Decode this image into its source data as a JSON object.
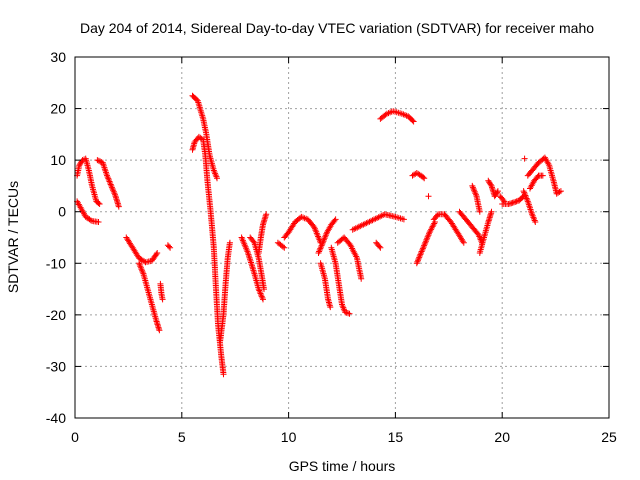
{
  "chart_data": {
    "type": "scatter",
    "title": "Day 204 of 2014, Sidereal Day-to-day VTEC variation (SDTVAR) for receiver maho",
    "xlabel": "GPS time / hours",
    "ylabel": "SDTVAR / TECUs",
    "xlim": [
      0,
      25
    ],
    "ylim": [
      -40,
      30
    ],
    "xticks": [
      0,
      5,
      10,
      15,
      20,
      25
    ],
    "yticks": [
      -40,
      -30,
      -20,
      -10,
      0,
      10,
      20,
      30
    ],
    "xtick_labels": [
      "0",
      "5",
      "10",
      "15",
      "20",
      "25"
    ],
    "ytick_labels": [
      "-40",
      "-30",
      "-20",
      "-10",
      "0",
      "10",
      "20",
      "30"
    ],
    "grid": true,
    "marker": "+",
    "series": [
      {
        "name": "SDTVAR",
        "color": "#ff0000",
        "segments": [
          [
            [
              0.1,
              2
            ],
            [
              0.3,
              0.5
            ],
            [
              0.5,
              -1
            ],
            [
              0.8,
              -1.8
            ],
            [
              1.1,
              -2
            ]
          ],
          [
            [
              0.1,
              7
            ],
            [
              0.2,
              9
            ],
            [
              0.35,
              10
            ],
            [
              0.5,
              10.3
            ],
            [
              0.65,
              8
            ],
            [
              0.8,
              5
            ],
            [
              1.0,
              2
            ],
            [
              1.15,
              1.5
            ]
          ],
          [
            [
              1.05,
              10
            ],
            [
              1.3,
              9.5
            ],
            [
              1.5,
              7
            ],
            [
              1.7,
              5
            ],
            [
              1.9,
              3
            ],
            [
              2.05,
              1
            ]
          ],
          [
            [
              2.4,
              -5
            ],
            [
              2.7,
              -7
            ],
            [
              3.0,
              -9
            ],
            [
              3.3,
              -9.8
            ],
            [
              3.6,
              -9.5
            ],
            [
              3.85,
              -8
            ]
          ],
          [
            [
              3.0,
              -10
            ],
            [
              3.2,
              -12
            ],
            [
              3.4,
              -15
            ],
            [
              3.6,
              -18
            ],
            [
              3.8,
              -21
            ],
            [
              3.95,
              -23
            ]
          ],
          [
            [
              4.0,
              -14
            ],
            [
              4.05,
              -16
            ],
            [
              4.1,
              -17
            ]
          ],
          [
            [
              4.35,
              -6.5
            ],
            [
              4.45,
              -7
            ]
          ],
          [
            [
              5.5,
              22.5
            ],
            [
              5.75,
              21.5
            ],
            [
              6.0,
              18
            ],
            [
              6.15,
              15
            ],
            [
              6.3,
              11
            ],
            [
              6.5,
              8
            ],
            [
              6.65,
              6.5
            ]
          ],
          [
            [
              5.5,
              12
            ],
            [
              5.6,
              13.5
            ],
            [
              5.8,
              14.5
            ],
            [
              6.0,
              14
            ],
            [
              6.1,
              11
            ],
            [
              6.2,
              6
            ],
            [
              6.35,
              0
            ],
            [
              6.5,
              -7
            ],
            [
              6.6,
              -15
            ],
            [
              6.7,
              -22
            ],
            [
              6.85,
              -28
            ],
            [
              6.95,
              -31.5
            ]
          ],
          [
            [
              6.8,
              -25
            ],
            [
              6.95,
              -20
            ],
            [
              7.05,
              -14
            ],
            [
              7.15,
              -9
            ],
            [
              7.25,
              -6
            ]
          ],
          [
            [
              7.8,
              -5
            ],
            [
              8.1,
              -8
            ],
            [
              8.4,
              -12
            ],
            [
              8.6,
              -15
            ],
            [
              8.8,
              -17
            ]
          ],
          [
            [
              8.2,
              -5
            ],
            [
              8.4,
              -6
            ],
            [
              8.6,
              -9
            ],
            [
              8.85,
              -15
            ]
          ],
          [
            [
              8.6,
              -8
            ],
            [
              8.7,
              -5
            ],
            [
              8.8,
              -2.5
            ],
            [
              8.95,
              -0.5
            ]
          ],
          [
            [
              9.5,
              -6
            ],
            [
              9.8,
              -7
            ]
          ],
          [
            [
              9.8,
              -5
            ],
            [
              10.0,
              -4
            ],
            [
              10.3,
              -2
            ],
            [
              10.6,
              -1
            ],
            [
              10.9,
              -1.5
            ],
            [
              11.2,
              -3
            ],
            [
              11.5,
              -6
            ]
          ],
          [
            [
              11.5,
              -10
            ],
            [
              11.7,
              -13
            ],
            [
              11.85,
              -17
            ],
            [
              11.95,
              -18.5
            ]
          ],
          [
            [
              11.4,
              -8
            ],
            [
              11.6,
              -6
            ],
            [
              11.8,
              -4
            ],
            [
              12.0,
              -2.5
            ],
            [
              12.2,
              -1.5
            ]
          ],
          [
            [
              12.0,
              -7
            ],
            [
              12.2,
              -10
            ],
            [
              12.35,
              -14
            ],
            [
              12.5,
              -18
            ],
            [
              12.65,
              -19.5
            ],
            [
              12.85,
              -19.8
            ]
          ],
          [
            [
              12.3,
              -6
            ],
            [
              12.6,
              -5
            ],
            [
              12.9,
              -6.5
            ],
            [
              13.2,
              -9
            ],
            [
              13.4,
              -13
            ]
          ],
          [
            [
              13.0,
              -3.5
            ],
            [
              13.5,
              -2.5
            ],
            [
              14.0,
              -1.5
            ],
            [
              14.5,
              -0.5
            ],
            [
              15.0,
              -1
            ],
            [
              15.4,
              -1.5
            ]
          ],
          [
            [
              14.1,
              -6
            ],
            [
              14.3,
              -7
            ]
          ],
          [
            [
              14.3,
              18
            ],
            [
              14.6,
              19
            ],
            [
              14.9,
              19.5
            ],
            [
              15.3,
              19
            ],
            [
              15.6,
              18.5
            ],
            [
              15.85,
              17.5
            ]
          ],
          [
            [
              15.8,
              7
            ],
            [
              16.0,
              7.5
            ],
            [
              16.2,
              7
            ],
            [
              16.35,
              6.5
            ]
          ],
          [
            [
              16.55,
              3
            ]
          ],
          [
            [
              16.0,
              -10
            ],
            [
              16.2,
              -8
            ],
            [
              16.4,
              -6
            ],
            [
              16.6,
              -4
            ],
            [
              16.85,
              -2
            ]
          ],
          [
            [
              16.8,
              -1.5
            ],
            [
              17.0,
              -0.5
            ],
            [
              17.3,
              -0.5
            ],
            [
              17.6,
              -2
            ],
            [
              17.9,
              -4
            ],
            [
              18.2,
              -6
            ]
          ],
          [
            [
              18.0,
              0
            ],
            [
              18.3,
              -1.5
            ],
            [
              18.6,
              -3
            ],
            [
              18.9,
              -4.5
            ],
            [
              19.05,
              -6
            ]
          ],
          [
            [
              18.6,
              5
            ],
            [
              18.8,
              3
            ],
            [
              18.95,
              0
            ]
          ],
          [
            [
              18.95,
              -8
            ],
            [
              19.15,
              -5
            ],
            [
              19.35,
              -2
            ],
            [
              19.5,
              0
            ]
          ],
          [
            [
              19.35,
              6
            ],
            [
              19.5,
              5
            ],
            [
              19.65,
              3
            ],
            [
              19.8,
              4
            ]
          ],
          [
            [
              19.9,
              3
            ],
            [
              20.1,
              2
            ]
          ],
          [
            [
              20.0,
              1.5
            ],
            [
              20.3,
              1.5
            ],
            [
              20.55,
              1.8
            ],
            [
              20.8,
              2.2
            ],
            [
              21.0,
              3
            ]
          ],
          [
            [
              21.0,
              4
            ],
            [
              21.2,
              2
            ],
            [
              21.4,
              -0.5
            ],
            [
              21.55,
              -2
            ]
          ],
          [
            [
              21.2,
              7
            ],
            [
              21.4,
              8
            ],
            [
              21.7,
              9.5
            ],
            [
              22.0,
              10.5
            ],
            [
              22.2,
              9
            ],
            [
              22.4,
              6
            ],
            [
              22.55,
              3.5
            ],
            [
              22.75,
              4
            ]
          ],
          [
            [
              21.3,
              4.5
            ],
            [
              21.5,
              6
            ],
            [
              21.7,
              7
            ],
            [
              21.9,
              7
            ]
          ],
          [
            [
              21.05,
              10.3
            ]
          ]
        ]
      }
    ]
  }
}
